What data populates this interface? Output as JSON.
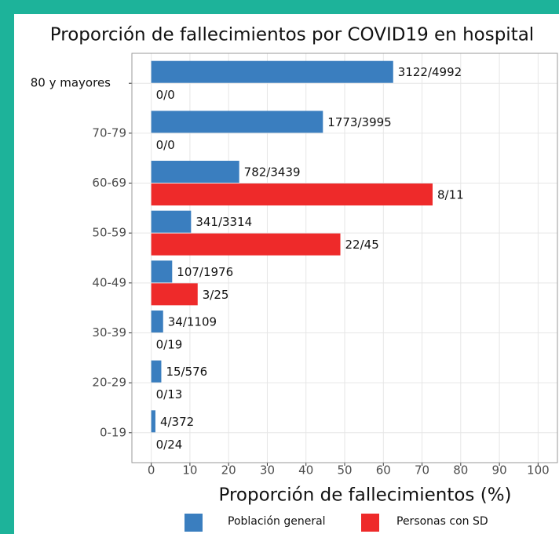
{
  "chart_data": {
    "type": "bar",
    "orientation": "horizontal",
    "title": "Proporción de fallecimientos por COVID19 en hospital",
    "x_label": "Proporción de fallecimientos (%)",
    "categories": [
      "80 y mayores",
      "70-79",
      "60-69",
      "50-59",
      "40-49",
      "30-39",
      "20-29",
      "0-19"
    ],
    "series": [
      {
        "name": "Población general",
        "color": "#3a7ebf",
        "values": [
          62.54,
          44.38,
          22.74,
          10.29,
          5.41,
          3.07,
          2.6,
          1.08
        ],
        "value_labels": [
          "3122/4992",
          "1773/3995",
          "782/3439",
          "341/3314",
          "107/1976",
          "34/1109",
          "15/576",
          "4/372"
        ]
      },
      {
        "name": "Personas con SD",
        "color": "#ee2a2a",
        "values": [
          0,
          0,
          72.73,
          48.89,
          12,
          0,
          0,
          0
        ],
        "value_labels": [
          "0/0",
          "0/0",
          "8/11",
          "22/45",
          "3/25",
          "0/19",
          "0/13",
          "0/24"
        ]
      }
    ],
    "xlim": [
      -5,
      105
    ],
    "xticks": [
      0,
      10,
      20,
      30,
      40,
      50,
      60,
      70,
      80,
      90,
      100
    ],
    "grid": true,
    "legend": "bottom"
  }
}
